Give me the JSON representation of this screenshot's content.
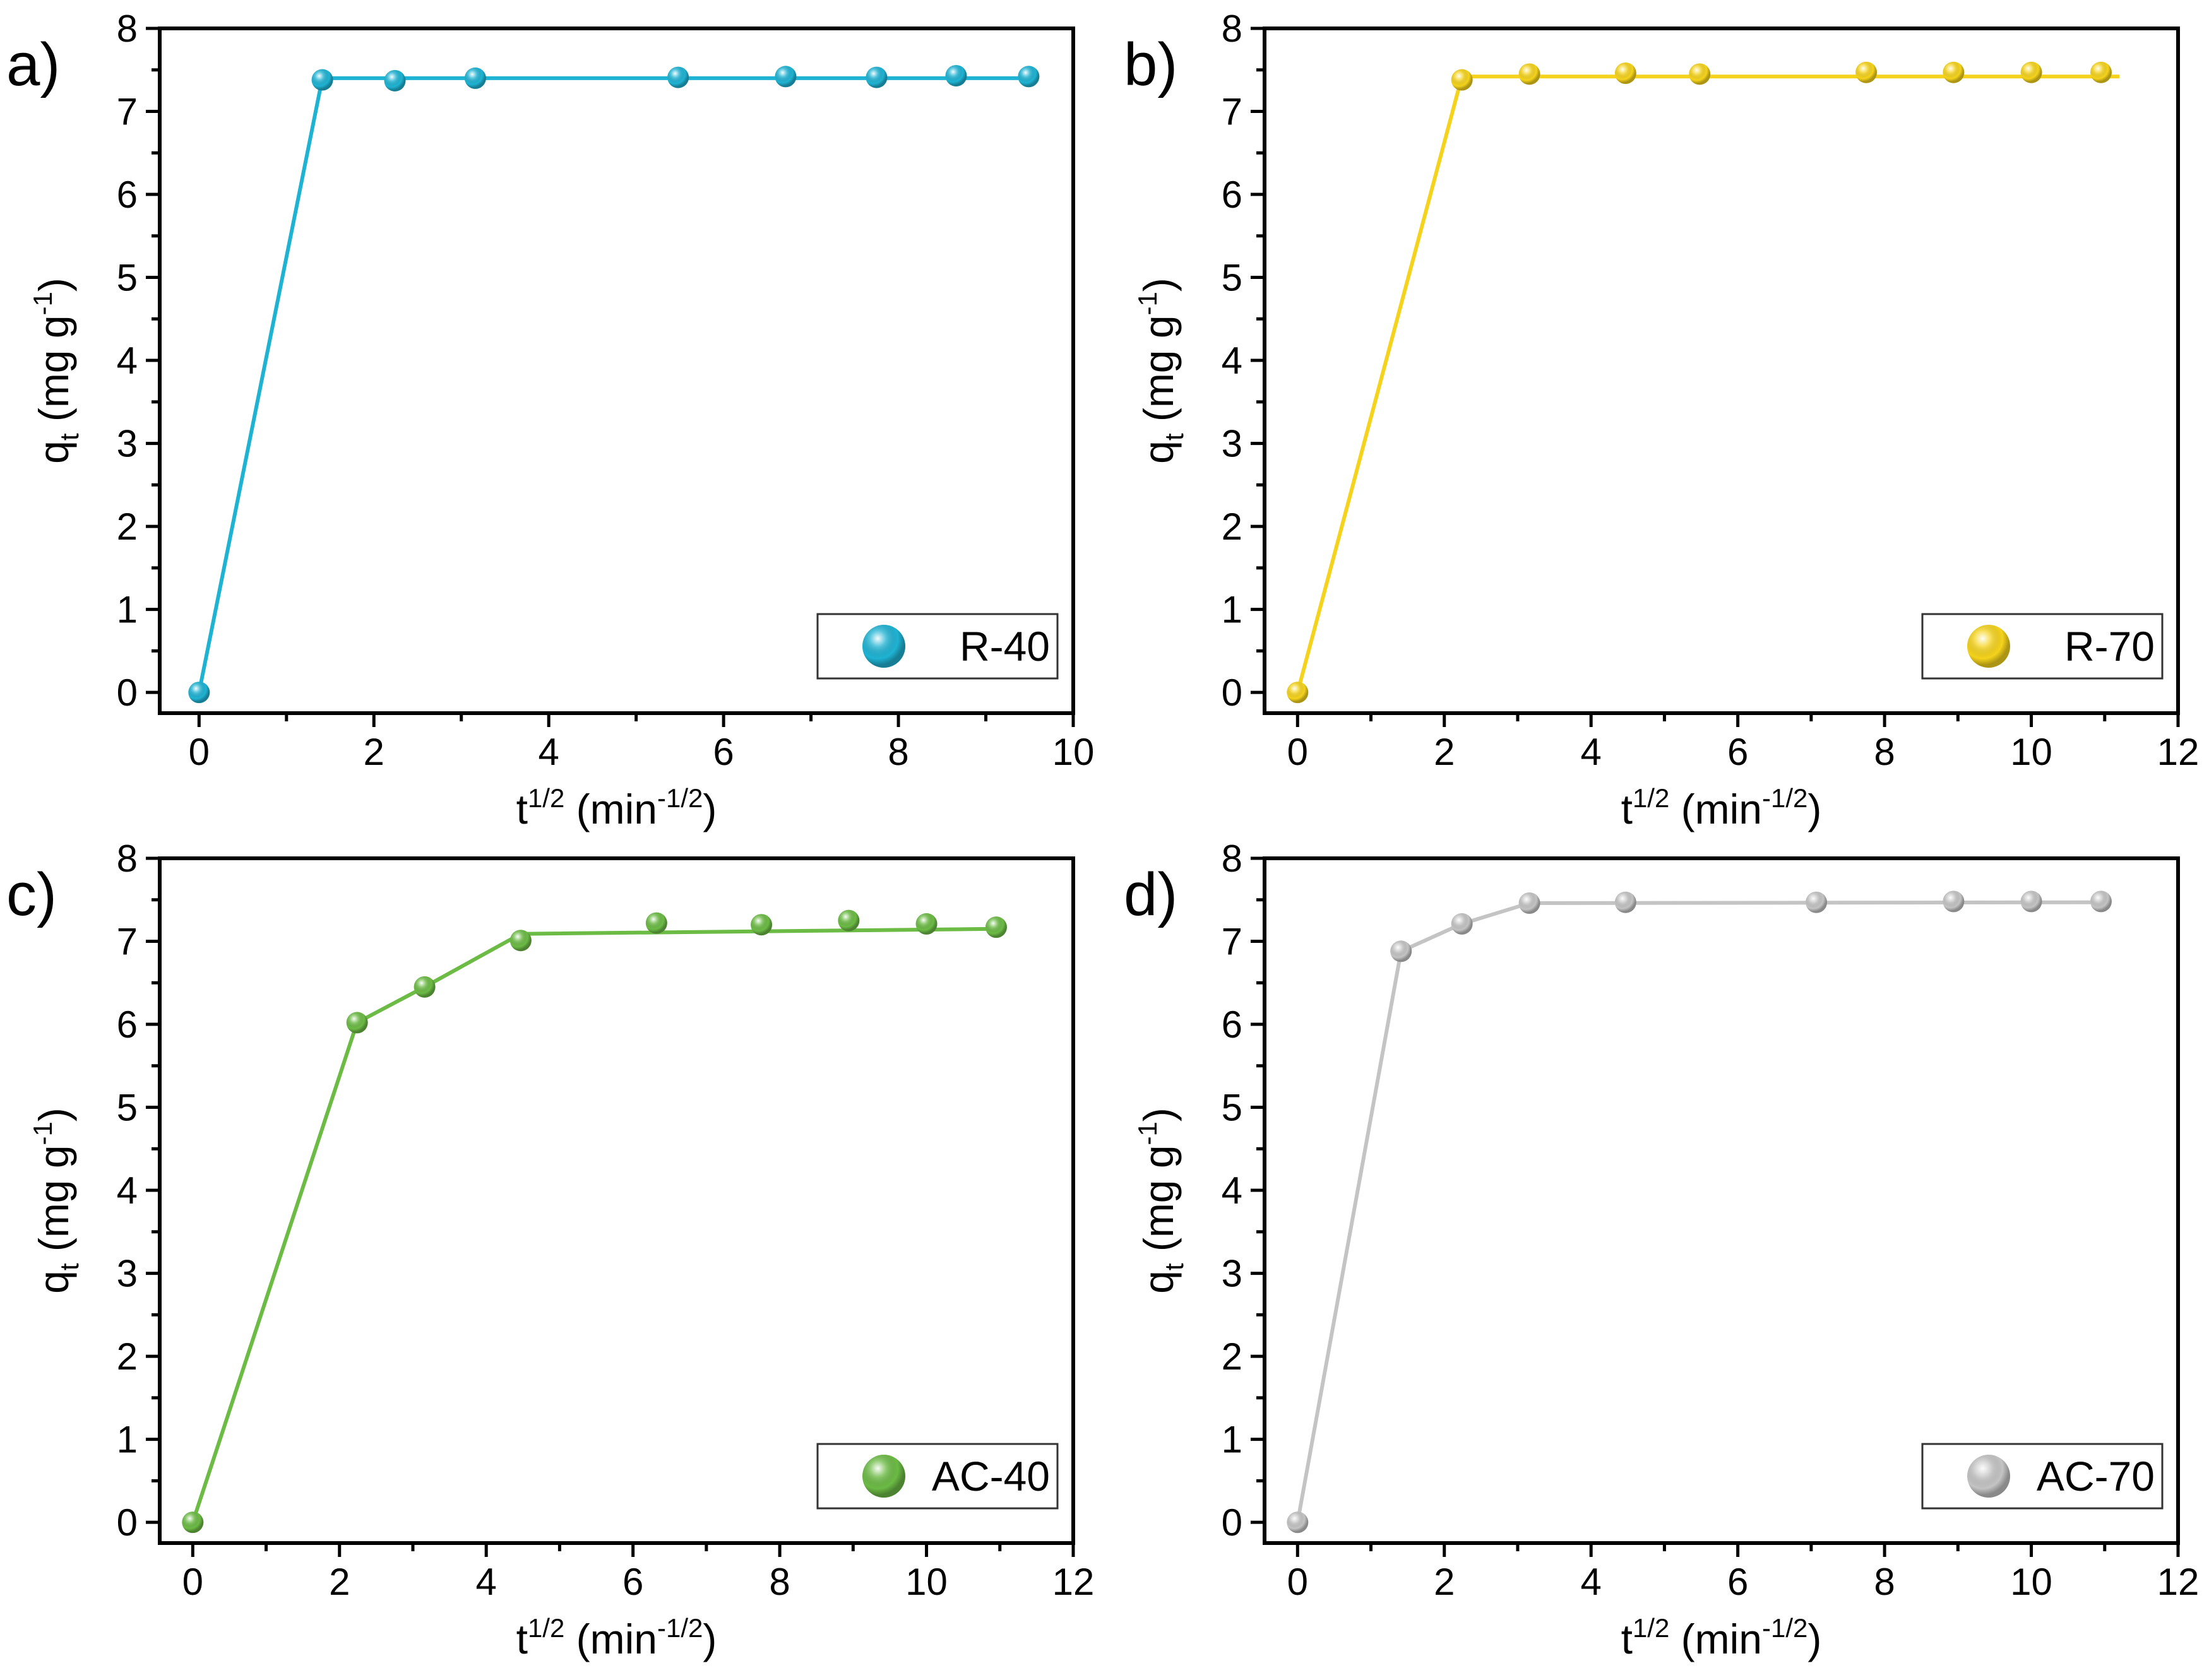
{
  "chart_data": [
    {
      "type": "line",
      "panel_label": "a)",
      "x_label": {
        "base": "t",
        "sup": "1/2",
        "unit": " (min",
        "unit_sup": "-1/2",
        "close": ")"
      },
      "y_label": {
        "base": "q",
        "sub": "t",
        "unit": " (mg g",
        "unit_sup": "-1",
        "close": ")"
      },
      "xlim": [
        -0.45,
        10
      ],
      "ylim": [
        -0.25,
        8
      ],
      "xticks": [
        0,
        2,
        4,
        6,
        8,
        10
      ],
      "yticks": [
        0,
        1,
        2,
        3,
        4,
        5,
        6,
        7,
        8
      ],
      "legend_position": "bottom-right",
      "series": [
        {
          "name": "R-40",
          "color": "#1fb3d3",
          "points": [
            [
              0,
              0
            ],
            [
              1.41,
              7.38
            ],
            [
              2.24,
              7.37
            ],
            [
              3.16,
              7.4
            ],
            [
              5.48,
              7.41
            ],
            [
              6.71,
              7.42
            ],
            [
              7.75,
              7.41
            ],
            [
              8.66,
              7.43
            ],
            [
              9.49,
              7.42
            ]
          ],
          "fit": [
            [
              0,
              0
            ],
            [
              1.41,
              7.4
            ],
            [
              9.49,
              7.4
            ]
          ]
        }
      ]
    },
    {
      "type": "line",
      "panel_label": "b)",
      "x_label": {
        "base": "t",
        "sup": "1/2",
        "unit": " (min",
        "unit_sup": "-1/2",
        "close": ")"
      },
      "y_label": {
        "base": "q",
        "sub": "t",
        "unit": " (mg g",
        "unit_sup": "-1",
        "close": ")"
      },
      "xlim": [
        -0.45,
        12
      ],
      "ylim": [
        -0.25,
        8
      ],
      "xticks": [
        0,
        2,
        4,
        6,
        8,
        10,
        12
      ],
      "yticks": [
        0,
        1,
        2,
        3,
        4,
        5,
        6,
        7,
        8
      ],
      "legend_position": "bottom-right",
      "series": [
        {
          "name": "R-70",
          "color": "#f5d31c",
          "points": [
            [
              0,
              0
            ],
            [
              2.24,
              7.38
            ],
            [
              3.16,
              7.45
            ],
            [
              4.47,
              7.46
            ],
            [
              5.48,
              7.45
            ],
            [
              7.75,
              7.47
            ],
            [
              8.94,
              7.47
            ],
            [
              10,
              7.47
            ],
            [
              10.95,
              7.47
            ]
          ],
          "fit": [
            [
              0,
              0
            ],
            [
              2.24,
              7.42
            ],
            [
              11.2,
              7.42
            ]
          ]
        }
      ]
    },
    {
      "type": "line",
      "panel_label": "c)",
      "x_label": {
        "base": "t",
        "sup": "1/2",
        "unit": " (min",
        "unit_sup": "-1/2",
        "close": ")"
      },
      "y_label": {
        "base": "q",
        "sub": "t",
        "unit": " (mg g",
        "unit_sup": "-1",
        "close": ")"
      },
      "xlim": [
        -0.45,
        12
      ],
      "ylim": [
        -0.25,
        8
      ],
      "xticks": [
        0,
        2,
        4,
        6,
        8,
        10,
        12
      ],
      "yticks": [
        0,
        1,
        2,
        3,
        4,
        5,
        6,
        7,
        8
      ],
      "legend_position": "bottom-right",
      "series": [
        {
          "name": "AC-40",
          "color": "#6cbb45",
          "points": [
            [
              0,
              0
            ],
            [
              2.24,
              6.02
            ],
            [
              3.16,
              6.45
            ],
            [
              4.47,
              7.01
            ],
            [
              6.32,
              7.22
            ],
            [
              7.75,
              7.2
            ],
            [
              8.94,
              7.25
            ],
            [
              10,
              7.21
            ],
            [
              10.95,
              7.17
            ]
          ],
          "fit": [
            [
              0,
              0
            ],
            [
              2.24,
              6.02
            ],
            [
              3.16,
              6.45
            ],
            [
              4.47,
              7.09
            ],
            [
              10.95,
              7.15
            ]
          ]
        }
      ]
    },
    {
      "type": "line",
      "panel_label": "d)",
      "x_label": {
        "base": "t",
        "sup": "1/2",
        "unit": " (min",
        "unit_sup": "-1/2",
        "close": ")"
      },
      "y_label": {
        "base": "q",
        "sub": "t",
        "unit": " (mg g",
        "unit_sup": "-1",
        "close": ")"
      },
      "xlim": [
        -0.45,
        12
      ],
      "ylim": [
        -0.25,
        8
      ],
      "xticks": [
        0,
        2,
        4,
        6,
        8,
        10,
        12
      ],
      "yticks": [
        0,
        1,
        2,
        3,
        4,
        5,
        6,
        7,
        8
      ],
      "legend_position": "bottom-right",
      "series": [
        {
          "name": "AC-70",
          "color": "#c4c4c4",
          "points": [
            [
              0,
              0
            ],
            [
              1.41,
              6.88
            ],
            [
              2.24,
              7.21
            ],
            [
              3.16,
              7.46
            ],
            [
              4.47,
              7.47
            ],
            [
              7.07,
              7.47
            ],
            [
              8.94,
              7.48
            ],
            [
              10,
              7.48
            ],
            [
              10.95,
              7.48
            ]
          ],
          "fit": [
            [
              0,
              0
            ],
            [
              1.41,
              6.88
            ],
            [
              2.24,
              7.21
            ],
            [
              3.16,
              7.46
            ],
            [
              10.95,
              7.47
            ]
          ]
        }
      ]
    }
  ]
}
